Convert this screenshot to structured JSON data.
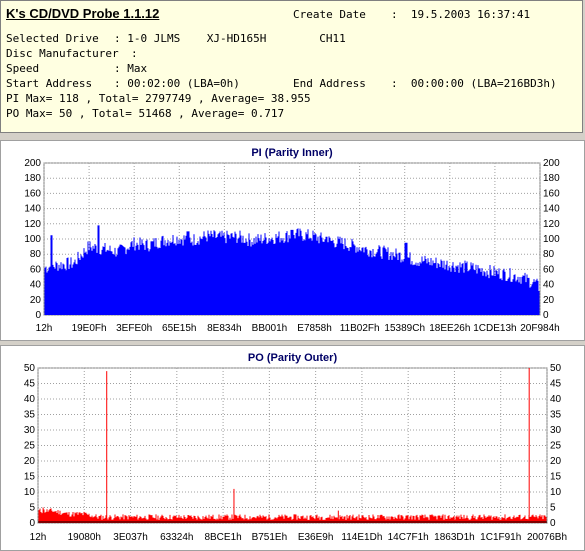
{
  "info": {
    "app_title": "K's CD/DVD Probe 1.1.12",
    "create_date_label": "Create Date",
    "create_date_value": ":  19.5.2003 16:37:41",
    "selected_drive_label": "Selected Drive",
    "selected_drive_value": ": 1-0 JLMS    XJ-HD165H        CH11",
    "disc_manufacturer_label": "Disc Manufacturer",
    "disc_manufacturer_value": ":",
    "speed_label": "Speed",
    "speed_value": ": Max",
    "start_address_label": "Start Address",
    "start_address_value": ": 00:02:00 (LBA=0h)",
    "end_address_label": "End Address",
    "end_address_value": ":  00:00:00 (LBA=216BD3h)",
    "pi_summary": "PI Max= 118 , Total= 2797749 , Average= 38.955",
    "po_summary": "PO Max= 50 , Total= 51468 , Average= 0.717"
  },
  "colors": {
    "pi_fill": "#0000ff",
    "po_fill": "#ff0000",
    "po_base": "#000000",
    "grid": "#a0a0a0"
  },
  "chart_data": [
    {
      "type": "area",
      "title": "PI (Parity Inner)",
      "ylim": [
        0,
        200
      ],
      "yticks": [
        0,
        20,
        40,
        60,
        80,
        100,
        120,
        140,
        160,
        180,
        200
      ],
      "xticks": [
        "12h",
        "19E0Fh",
        "3EFE0h",
        "65E15h",
        "8E834h",
        "BB001h",
        "E7858h",
        "11B02Fh",
        "15389Ch",
        "18EE26h",
        "1CDE13h",
        "20F984h"
      ],
      "grid": true,
      "series": [
        {
          "name": "",
          "x": [
            0,
            3,
            6,
            9,
            12,
            15,
            18,
            21,
            24,
            27,
            30,
            33,
            36,
            39,
            42,
            45,
            48,
            51,
            54,
            57,
            60,
            63,
            66,
            69,
            72,
            75,
            78,
            81,
            84,
            87,
            90,
            93,
            96,
            99,
            100
          ],
          "values": [
            62,
            66,
            68,
            90,
            87,
            83,
            94,
            92,
            98,
            101,
            99,
            104,
            102,
            103,
            98,
            101,
            103,
            106,
            104,
            98,
            95,
            90,
            85,
            82,
            78,
            72,
            70,
            67,
            64,
            61,
            57,
            54,
            50,
            42,
            35
          ],
          "peaks": [
            [
              1.5,
              105
            ],
            [
              11,
              118
            ],
            [
              29,
              110
            ],
            [
              37,
              106
            ],
            [
              50,
              112
            ],
            [
              57,
              103
            ],
            [
              73,
              95
            ]
          ]
        }
      ]
    },
    {
      "type": "area",
      "title": "PO (Parity Outer)",
      "ylim": [
        0,
        50
      ],
      "yticks": [
        0,
        5,
        10,
        15,
        20,
        25,
        30,
        35,
        40,
        45,
        50
      ],
      "xticks": [
        "12h",
        "19080h",
        "3E037h",
        "63324h",
        "8BCE1h",
        "B751Eh",
        "E36E9h",
        "114E1Dh",
        "14C7F1h",
        "1863D1h",
        "1C1F91h",
        "20076Bh"
      ],
      "grid": true,
      "series": [
        {
          "name": "",
          "x": [
            0,
            3,
            6,
            9,
            12,
            15,
            18,
            21,
            24,
            27,
            30,
            33,
            36,
            39,
            42,
            45,
            48,
            51,
            54,
            57,
            60,
            63,
            66,
            69,
            72,
            75,
            78,
            81,
            84,
            87,
            90,
            93,
            96,
            99,
            100
          ],
          "values": [
            3,
            3,
            2,
            2,
            1,
            1,
            1,
            1,
            1,
            1,
            1,
            1,
            1,
            1,
            1,
            1,
            1,
            1,
            1,
            1,
            1,
            1,
            1,
            1,
            1,
            1,
            1,
            1,
            1,
            1,
            1,
            1,
            1,
            1,
            1
          ],
          "spikes": [
            [
              13.5,
              49
            ],
            [
              38.5,
              11
            ],
            [
              96.5,
              50
            ],
            [
              59,
              4
            ],
            [
              1,
              5
            ]
          ]
        }
      ]
    }
  ]
}
